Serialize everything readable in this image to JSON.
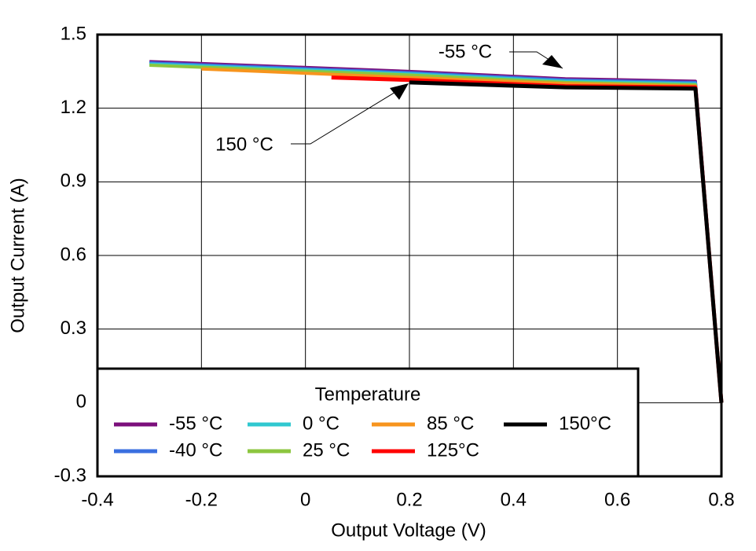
{
  "chart_data": {
    "type": "line",
    "xlabel": "Output Voltage (V)",
    "ylabel": "Output Current (A)",
    "xlim": [
      -0.4,
      0.8
    ],
    "xticks": [
      -0.4,
      -0.2,
      0,
      0.2,
      0.4,
      0.6,
      0.8
    ],
    "ylim": [
      -0.3,
      1.5
    ],
    "yticks": [
      -0.3,
      0,
      0.3,
      0.6,
      0.9,
      1.2,
      1.5
    ],
    "grid": true,
    "legend_title": "Temperature",
    "series": [
      {
        "name": "-55 °C",
        "color": "#7b0f7b",
        "x": [
          -0.3,
          0.2,
          0.5,
          0.75,
          0.8
        ],
        "values": [
          1.39,
          1.35,
          1.32,
          1.31,
          0
        ]
      },
      {
        "name": "-40 °C",
        "color": "#3a6fe0",
        "x": [
          -0.3,
          0.2,
          0.5,
          0.75,
          0.8
        ],
        "values": [
          1.385,
          1.345,
          1.315,
          1.305,
          0
        ]
      },
      {
        "name": "0 °C",
        "color": "#30c8d0",
        "x": [
          -0.3,
          0.2,
          0.5,
          0.75,
          0.8
        ],
        "values": [
          1.38,
          1.34,
          1.31,
          1.3,
          0
        ]
      },
      {
        "name": "25 °C",
        "color": "#8cc63f",
        "x": [
          -0.3,
          0.2,
          0.5,
          0.75,
          0.8
        ],
        "values": [
          1.375,
          1.335,
          1.305,
          1.295,
          0
        ]
      },
      {
        "name": "85 °C",
        "color": "#f7941d",
        "x": [
          -0.2,
          0.2,
          0.5,
          0.75,
          0.8
        ],
        "values": [
          1.36,
          1.325,
          1.3,
          1.29,
          0
        ]
      },
      {
        "name": "125°C",
        "color": "#ff0000",
        "x": [
          0.05,
          0.2,
          0.5,
          0.75,
          0.8
        ],
        "values": [
          1.325,
          1.315,
          1.29,
          1.285,
          0
        ]
      },
      {
        "name": "150°C",
        "color": "#000000",
        "x": [
          0.2,
          0.5,
          0.75,
          0.8
        ],
        "values": [
          1.305,
          1.285,
          1.28,
          0
        ]
      }
    ],
    "annotations": [
      "-55 °C",
      "150 °C"
    ]
  }
}
